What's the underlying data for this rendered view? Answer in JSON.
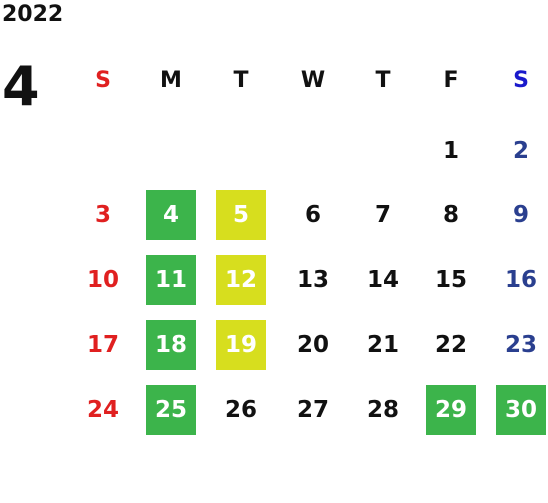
{
  "calendar": {
    "year": "2022",
    "month": "4",
    "weekdays": [
      "S",
      "M",
      "T",
      "W",
      "T",
      "F",
      "S"
    ],
    "weekday_colors": [
      "#e02020",
      "#111111",
      "#111111",
      "#111111",
      "#111111",
      "#111111",
      "#1a1acc"
    ],
    "colors": {
      "sunday": "#e02020",
      "saturday": "#2a3f8f",
      "weekday": "#111111",
      "highlight_green": "#3cb44b",
      "highlight_yellow": "#d7de1e",
      "highlight_text": "#ffffff"
    },
    "weeks": [
      [
        {
          "d": ""
        },
        {
          "d": ""
        },
        {
          "d": ""
        },
        {
          "d": ""
        },
        {
          "d": ""
        },
        {
          "d": "1"
        },
        {
          "d": "2"
        }
      ],
      [
        {
          "d": "3"
        },
        {
          "d": "4",
          "hl": "green"
        },
        {
          "d": "5",
          "hl": "yellow"
        },
        {
          "d": "6"
        },
        {
          "d": "7"
        },
        {
          "d": "8"
        },
        {
          "d": "9"
        }
      ],
      [
        {
          "d": "10"
        },
        {
          "d": "11",
          "hl": "green"
        },
        {
          "d": "12",
          "hl": "yellow"
        },
        {
          "d": "13"
        },
        {
          "d": "14"
        },
        {
          "d": "15"
        },
        {
          "d": "16"
        }
      ],
      [
        {
          "d": "17"
        },
        {
          "d": "18",
          "hl": "green"
        },
        {
          "d": "19",
          "hl": "yellow"
        },
        {
          "d": "20"
        },
        {
          "d": "21"
        },
        {
          "d": "22"
        },
        {
          "d": "23"
        }
      ],
      [
        {
          "d": "24"
        },
        {
          "d": "25",
          "hl": "green"
        },
        {
          "d": "26"
        },
        {
          "d": "27"
        },
        {
          "d": "28"
        },
        {
          "d": "29",
          "hl": "green"
        },
        {
          "d": "30",
          "hl": "green"
        }
      ]
    ]
  }
}
